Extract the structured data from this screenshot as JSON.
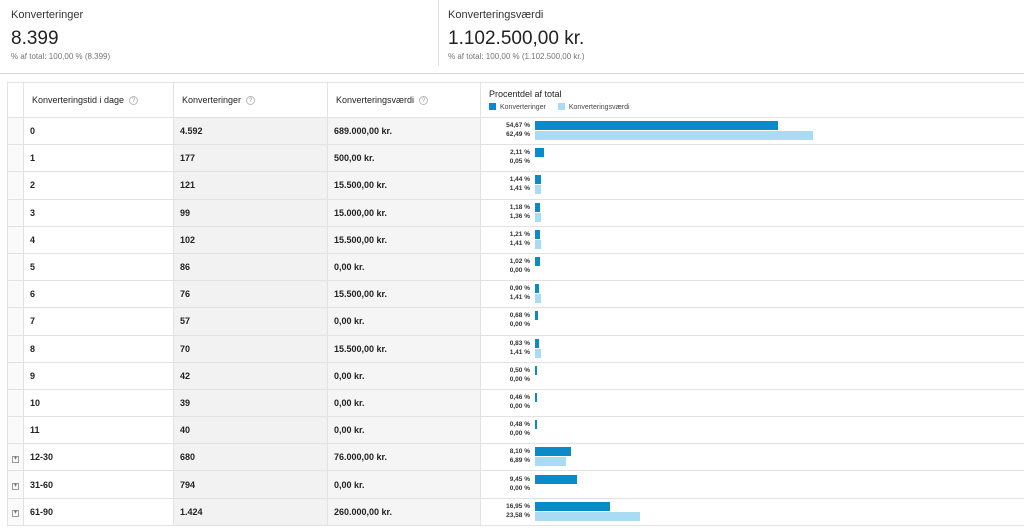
{
  "summary": {
    "metrics": [
      {
        "label": "Konverteringer",
        "value": "8.399",
        "sub": "% af total: 100,00 % (8.399)"
      },
      {
        "label": "Konverteringsværdi",
        "value": "1.102.500,00 kr.",
        "sub": "% af total: 100,00 % (1.102.500,00 kr.)"
      }
    ]
  },
  "table": {
    "columns": {
      "col1": "Konverteringstid i dage",
      "col2": "Konverteringer",
      "col3": "Konverteringsværdi",
      "col4": "Procentdel af total"
    },
    "help_glyph": "?",
    "expand_glyph": "+",
    "legend": {
      "conversions": "Konverteringer",
      "value": "Konverteringsværdi"
    },
    "colors": {
      "conversions": "#0b8ac9",
      "value": "#a9dcf3"
    },
    "rows": [
      {
        "days": "0",
        "conversions": "4.592",
        "value": "689.000,00 kr.",
        "pct_conv": "54,67 %",
        "pct_val": "62,49 %",
        "frac_conv": 0.5467,
        "frac_val": 0.6249,
        "expandable": false
      },
      {
        "days": "1",
        "conversions": "177",
        "value": "500,00 kr.",
        "pct_conv": "2,11 %",
        "pct_val": "0,05 %",
        "frac_conv": 0.0211,
        "frac_val": 0.0005,
        "expandable": false
      },
      {
        "days": "2",
        "conversions": "121",
        "value": "15.500,00 kr.",
        "pct_conv": "1,44 %",
        "pct_val": "1,41 %",
        "frac_conv": 0.0144,
        "frac_val": 0.0141,
        "expandable": false
      },
      {
        "days": "3",
        "conversions": "99",
        "value": "15.000,00 kr.",
        "pct_conv": "1,18 %",
        "pct_val": "1,36 %",
        "frac_conv": 0.0118,
        "frac_val": 0.0136,
        "expandable": false
      },
      {
        "days": "4",
        "conversions": "102",
        "value": "15.500,00 kr.",
        "pct_conv": "1,21 %",
        "pct_val": "1,41 %",
        "frac_conv": 0.0121,
        "frac_val": 0.0141,
        "expandable": false
      },
      {
        "days": "5",
        "conversions": "86",
        "value": "0,00 kr.",
        "pct_conv": "1,02 %",
        "pct_val": "0,00 %",
        "frac_conv": 0.0102,
        "frac_val": 0.0,
        "expandable": false
      },
      {
        "days": "6",
        "conversions": "76",
        "value": "15.500,00 kr.",
        "pct_conv": "0,90 %",
        "pct_val": "1,41 %",
        "frac_conv": 0.009,
        "frac_val": 0.0141,
        "expandable": false
      },
      {
        "days": "7",
        "conversions": "57",
        "value": "0,00 kr.",
        "pct_conv": "0,68 %",
        "pct_val": "0,00 %",
        "frac_conv": 0.0068,
        "frac_val": 0.0,
        "expandable": false
      },
      {
        "days": "8",
        "conversions": "70",
        "value": "15.500,00 kr.",
        "pct_conv": "0,83 %",
        "pct_val": "1,41 %",
        "frac_conv": 0.0083,
        "frac_val": 0.0141,
        "expandable": false
      },
      {
        "days": "9",
        "conversions": "42",
        "value": "0,00 kr.",
        "pct_conv": "0,50 %",
        "pct_val": "0,00 %",
        "frac_conv": 0.005,
        "frac_val": 0.0,
        "expandable": false
      },
      {
        "days": "10",
        "conversions": "39",
        "value": "0,00 kr.",
        "pct_conv": "0,46 %",
        "pct_val": "0,00 %",
        "frac_conv": 0.0046,
        "frac_val": 0.0,
        "expandable": false
      },
      {
        "days": "11",
        "conversions": "40",
        "value": "0,00 kr.",
        "pct_conv": "0,48 %",
        "pct_val": "0,00 %",
        "frac_conv": 0.0048,
        "frac_val": 0.0,
        "expandable": false
      },
      {
        "days": "12-30",
        "conversions": "680",
        "value": "76.000,00 kr.",
        "pct_conv": "8,10 %",
        "pct_val": "6,89 %",
        "frac_conv": 0.081,
        "frac_val": 0.0689,
        "expandable": true
      },
      {
        "days": "31-60",
        "conversions": "794",
        "value": "0,00 kr.",
        "pct_conv": "9,45 %",
        "pct_val": "0,00 %",
        "frac_conv": 0.0945,
        "frac_val": 0.0,
        "expandable": true
      },
      {
        "days": "61-90",
        "conversions": "1.424",
        "value": "260.000,00 kr.",
        "pct_conv": "16,95 %",
        "pct_val": "23,58 %",
        "frac_conv": 0.1695,
        "frac_val": 0.2358,
        "expandable": true
      }
    ]
  }
}
